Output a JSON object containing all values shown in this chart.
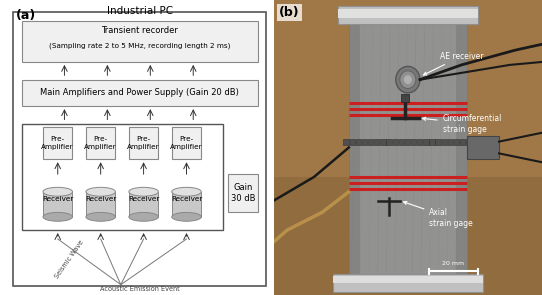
{
  "fig_width": 5.42,
  "fig_height": 2.95,
  "dpi": 100,
  "bg_color": "#ffffff",
  "panel_a_label": "(a)",
  "panel_b_label": "(b)",
  "industrial_pc_label": "Industrial PC",
  "transient_line1": "Transient recorder",
  "transient_line2": "(Sampling rate 2 to 5 MHz, recording length 2 ms)",
  "main_amp_label": "Main Amplifiers and Power Supply (Gain 20 dB)",
  "preamp_label": "Pre-\nAmplifier",
  "receiver_label": "Receiver",
  "gain_label": "Gain\n30 dB",
  "seismic_wave_label": "Seismic Wave",
  "ae_event_label": "Acoustic Emission Event",
  "box_bg": "#f0f0f0",
  "box_edge": "#888888",
  "outer_box_edge": "#555555",
  "arrow_color": "#333333",
  "font_size_title": 7.5,
  "font_size_box": 6.0,
  "font_size_small": 5.2,
  "font_size_panel": 9,
  "photo_bg": "#a07850",
  "photo_cylinder": "#9a9a96",
  "photo_metal": "#c8c8c8",
  "photo_band": "#cc2222",
  "photo_text": "#ffffff",
  "photo_annotation_color": "#ffffff",
  "ae_receiver_text": "AE receiver",
  "circ_strain_text": "Circumferential\nstrain gage",
  "axial_strain_text": "Axial\nstrain gage",
  "scale_bar_text": "20 mm"
}
